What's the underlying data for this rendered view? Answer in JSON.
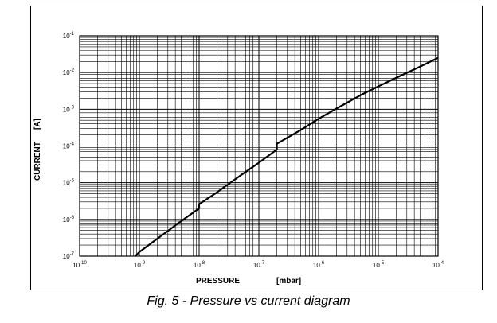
{
  "caption": "Fig. 5 - Pressure vs current diagram",
  "chart_data": {
    "type": "line",
    "title": "",
    "xlabel": "PRESSURE",
    "xunit": "[mbar]",
    "ylabel": "CURRENT",
    "yunit": "[A]",
    "x_scale": "log",
    "y_scale": "log",
    "xlim": [
      1e-10,
      0.0001
    ],
    "ylim": [
      1e-07,
      0.1
    ],
    "x_ticks": [
      {
        "base": "10",
        "exp": "-10",
        "value": 1e-10
      },
      {
        "base": "10",
        "exp": "-9",
        "value": 1e-09
      },
      {
        "base": "10",
        "exp": "-8",
        "value": 1e-08
      },
      {
        "base": "10",
        "exp": "-7",
        "value": 1e-07
      },
      {
        "base": "10",
        "exp": "-6",
        "value": 1e-06
      },
      {
        "base": "10",
        "exp": "-5",
        "value": 1e-05
      },
      {
        "base": "10",
        "exp": "-4",
        "value": 0.0001
      }
    ],
    "y_ticks": [
      {
        "base": "10",
        "exp": "-7",
        "value": 1e-07
      },
      {
        "base": "10",
        "exp": "-6",
        "value": 1e-06
      },
      {
        "base": "10",
        "exp": "-5",
        "value": 1e-05
      },
      {
        "base": "10",
        "exp": "-4",
        "value": 0.0001
      },
      {
        "base": "10",
        "exp": "-3",
        "value": 0.001
      },
      {
        "base": "10",
        "exp": "-2",
        "value": 0.01
      },
      {
        "base": "10",
        "exp": "-1",
        "value": 0.1
      }
    ],
    "grid": true,
    "line_color": "#000000",
    "series": [
      {
        "points": [
          [
            8.5e-10,
            1e-07
          ],
          [
            1e-09,
            1.3e-07
          ],
          [
            2e-09,
            3e-07
          ],
          [
            5e-09,
            9e-07
          ],
          [
            1e-08,
            2e-06
          ],
          [
            1e-08,
            2.6e-06
          ],
          [
            2e-08,
            5.5e-06
          ],
          [
            5e-08,
            1.6e-05
          ],
          [
            1e-07,
            3.5e-05
          ],
          [
            2e-07,
            8e-05
          ],
          [
            2e-07,
            0.000115
          ],
          [
            5e-07,
            0.00027
          ],
          [
            1e-06,
            0.00055
          ],
          [
            2e-06,
            0.00105
          ],
          [
            5e-06,
            0.0024
          ],
          [
            1e-05,
            0.0042
          ],
          [
            2e-05,
            0.0072
          ],
          [
            5e-05,
            0.0145
          ],
          [
            0.0001,
            0.025
          ]
        ]
      }
    ]
  }
}
